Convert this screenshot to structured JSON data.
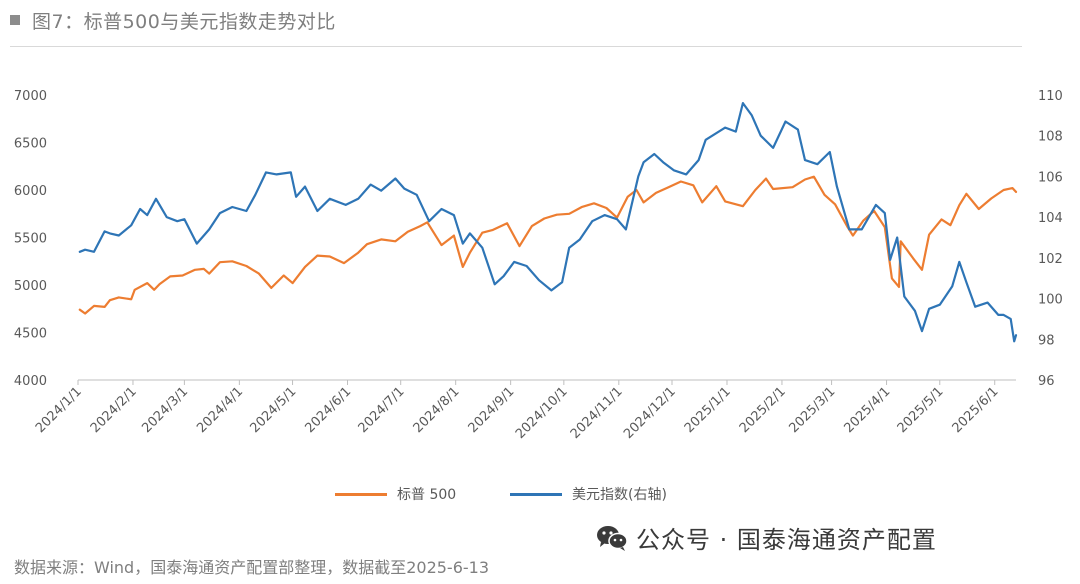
{
  "header": {
    "title": "图7：标普500与美元指数走势对比"
  },
  "footer": {
    "source": "数据来源：Wind，国泰海通资产配置部整理，数据截至2025-6-13",
    "watermark": "公众号 · 国泰海通资产配置"
  },
  "legend": {
    "spx_label": "标普 500",
    "dxy_label": "美元指数(右轴)"
  },
  "colors": {
    "spx": "#ed7d31",
    "dxy": "#2e75b6",
    "axis": "#bfbfbf",
    "text": "#595959"
  },
  "chart_data": {
    "type": "line",
    "title": "图7：标普500与美元指数走势对比",
    "x_tick_labels": [
      "2024/1/1",
      "2024/2/1",
      "2024/3/1",
      "2024/4/1",
      "2024/5/1",
      "2024/6/1",
      "2024/7/1",
      "2024/8/1",
      "2024/9/1",
      "2024/10/1",
      "2024/11/1",
      "2024/12/1",
      "2025/1/1",
      "2025/2/1",
      "2025/3/1",
      "2025/4/1",
      "2025/5/1",
      "2025/6/1"
    ],
    "x_range": [
      "2024-01-01",
      "2025-06-13"
    ],
    "y_left": {
      "min": 4000,
      "max": 7000,
      "ticks": [
        4000,
        4500,
        5000,
        5500,
        6000,
        6500,
        7000
      ]
    },
    "y_right": {
      "min": 96,
      "max": 110,
      "ticks": [
        96,
        98,
        100,
        102,
        104,
        106,
        108,
        110
      ]
    },
    "grid": false,
    "legend_position": "bottom",
    "series": [
      {
        "name": "标普 500",
        "axis": "left",
        "points": [
          [
            "2024-01-02",
            4740
          ],
          [
            "2024-01-05",
            4700
          ],
          [
            "2024-01-10",
            4780
          ],
          [
            "2024-01-16",
            4770
          ],
          [
            "2024-01-19",
            4840
          ],
          [
            "2024-01-24",
            4870
          ],
          [
            "2024-01-31",
            4850
          ],
          [
            "2024-02-02",
            4950
          ],
          [
            "2024-02-09",
            5020
          ],
          [
            "2024-02-13",
            4950
          ],
          [
            "2024-02-16",
            5010
          ],
          [
            "2024-02-22",
            5090
          ],
          [
            "2024-02-29",
            5100
          ],
          [
            "2024-03-07",
            5160
          ],
          [
            "2024-03-12",
            5170
          ],
          [
            "2024-03-15",
            5120
          ],
          [
            "2024-03-21",
            5240
          ],
          [
            "2024-03-28",
            5250
          ],
          [
            "2024-04-05",
            5200
          ],
          [
            "2024-04-12",
            5120
          ],
          [
            "2024-04-19",
            4970
          ],
          [
            "2024-04-26",
            5100
          ],
          [
            "2024-05-01",
            5020
          ],
          [
            "2024-05-08",
            5190
          ],
          [
            "2024-05-15",
            5310
          ],
          [
            "2024-05-22",
            5300
          ],
          [
            "2024-05-30",
            5230
          ],
          [
            "2024-06-07",
            5340
          ],
          [
            "2024-06-12",
            5430
          ],
          [
            "2024-06-20",
            5480
          ],
          [
            "2024-06-28",
            5460
          ],
          [
            "2024-07-05",
            5560
          ],
          [
            "2024-07-12",
            5620
          ],
          [
            "2024-07-16",
            5660
          ],
          [
            "2024-07-24",
            5420
          ],
          [
            "2024-07-31",
            5520
          ],
          [
            "2024-08-05",
            5190
          ],
          [
            "2024-08-09",
            5340
          ],
          [
            "2024-08-16",
            5550
          ],
          [
            "2024-08-22",
            5580
          ],
          [
            "2024-08-30",
            5650
          ],
          [
            "2024-09-06",
            5410
          ],
          [
            "2024-09-13",
            5620
          ],
          [
            "2024-09-20",
            5700
          ],
          [
            "2024-09-27",
            5740
          ],
          [
            "2024-10-04",
            5750
          ],
          [
            "2024-10-11",
            5820
          ],
          [
            "2024-10-18",
            5860
          ],
          [
            "2024-10-25",
            5810
          ],
          [
            "2024-10-31",
            5710
          ],
          [
            "2024-11-06",
            5930
          ],
          [
            "2024-11-11",
            6000
          ],
          [
            "2024-11-15",
            5870
          ],
          [
            "2024-11-22",
            5970
          ],
          [
            "2024-11-29",
            6030
          ],
          [
            "2024-12-06",
            6090
          ],
          [
            "2024-12-13",
            6050
          ],
          [
            "2024-12-18",
            5870
          ],
          [
            "2024-12-26",
            6040
          ],
          [
            "2024-12-31",
            5880
          ],
          [
            "2025-01-10",
            5830
          ],
          [
            "2025-01-17",
            6000
          ],
          [
            "2025-01-23",
            6120
          ],
          [
            "2025-01-27",
            6010
          ],
          [
            "2025-02-07",
            6030
          ],
          [
            "2025-02-14",
            6110
          ],
          [
            "2025-02-19",
            6140
          ],
          [
            "2025-02-25",
            5950
          ],
          [
            "2025-03-03",
            5850
          ],
          [
            "2025-03-10",
            5610
          ],
          [
            "2025-03-13",
            5520
          ],
          [
            "2025-03-19",
            5680
          ],
          [
            "2025-03-25",
            5780
          ],
          [
            "2025-03-31",
            5610
          ],
          [
            "2025-04-04",
            5070
          ],
          [
            "2025-04-08",
            4980
          ],
          [
            "2025-04-09",
            5460
          ],
          [
            "2025-04-16",
            5280
          ],
          [
            "2025-04-21",
            5160
          ],
          [
            "2025-04-25",
            5530
          ],
          [
            "2025-05-02",
            5690
          ],
          [
            "2025-05-07",
            5630
          ],
          [
            "2025-05-12",
            5840
          ],
          [
            "2025-05-16",
            5960
          ],
          [
            "2025-05-23",
            5800
          ],
          [
            "2025-05-30",
            5910
          ],
          [
            "2025-06-06",
            6000
          ],
          [
            "2025-06-11",
            6020
          ],
          [
            "2025-06-13",
            5980
          ]
        ]
      },
      {
        "name": "美元指数(右轴)",
        "axis": "right",
        "points": [
          [
            "2024-01-02",
            102.3
          ],
          [
            "2024-01-05",
            102.4
          ],
          [
            "2024-01-10",
            102.3
          ],
          [
            "2024-01-16",
            103.3
          ],
          [
            "2024-01-19",
            103.2
          ],
          [
            "2024-01-24",
            103.1
          ],
          [
            "2024-01-31",
            103.6
          ],
          [
            "2024-02-05",
            104.4
          ],
          [
            "2024-02-09",
            104.1
          ],
          [
            "2024-02-14",
            104.9
          ],
          [
            "2024-02-20",
            104.0
          ],
          [
            "2024-02-26",
            103.8
          ],
          [
            "2024-03-01",
            103.9
          ],
          [
            "2024-03-08",
            102.7
          ],
          [
            "2024-03-15",
            103.4
          ],
          [
            "2024-03-21",
            104.2
          ],
          [
            "2024-03-28",
            104.5
          ],
          [
            "2024-04-05",
            104.3
          ],
          [
            "2024-04-10",
            105.1
          ],
          [
            "2024-04-16",
            106.2
          ],
          [
            "2024-04-22",
            106.1
          ],
          [
            "2024-04-30",
            106.2
          ],
          [
            "2024-05-03",
            105.0
          ],
          [
            "2024-05-08",
            105.5
          ],
          [
            "2024-05-15",
            104.3
          ],
          [
            "2024-05-22",
            104.9
          ],
          [
            "2024-05-31",
            104.6
          ],
          [
            "2024-06-07",
            104.9
          ],
          [
            "2024-06-14",
            105.6
          ],
          [
            "2024-06-20",
            105.3
          ],
          [
            "2024-06-28",
            105.9
          ],
          [
            "2024-07-03",
            105.4
          ],
          [
            "2024-07-10",
            105.1
          ],
          [
            "2024-07-17",
            103.8
          ],
          [
            "2024-07-24",
            104.4
          ],
          [
            "2024-07-31",
            104.1
          ],
          [
            "2024-08-05",
            102.7
          ],
          [
            "2024-08-09",
            103.2
          ],
          [
            "2024-08-16",
            102.5
          ],
          [
            "2024-08-23",
            100.7
          ],
          [
            "2024-08-28",
            101.1
          ],
          [
            "2024-09-03",
            101.8
          ],
          [
            "2024-09-10",
            101.6
          ],
          [
            "2024-09-17",
            100.9
          ],
          [
            "2024-09-24",
            100.4
          ],
          [
            "2024-09-30",
            100.8
          ],
          [
            "2024-10-04",
            102.5
          ],
          [
            "2024-10-10",
            102.9
          ],
          [
            "2024-10-17",
            103.8
          ],
          [
            "2024-10-24",
            104.1
          ],
          [
            "2024-10-31",
            103.9
          ],
          [
            "2024-11-05",
            103.4
          ],
          [
            "2024-11-12",
            106.0
          ],
          [
            "2024-11-15",
            106.7
          ],
          [
            "2024-11-21",
            107.1
          ],
          [
            "2024-11-26",
            106.7
          ],
          [
            "2024-12-02",
            106.3
          ],
          [
            "2024-12-09",
            106.1
          ],
          [
            "2024-12-16",
            106.8
          ],
          [
            "2024-12-20",
            107.8
          ],
          [
            "2024-12-31",
            108.4
          ],
          [
            "2025-01-06",
            108.2
          ],
          [
            "2025-01-10",
            109.6
          ],
          [
            "2025-01-15",
            109.0
          ],
          [
            "2025-01-20",
            108.0
          ],
          [
            "2025-01-27",
            107.4
          ],
          [
            "2025-02-03",
            108.7
          ],
          [
            "2025-02-10",
            108.3
          ],
          [
            "2025-02-14",
            106.8
          ],
          [
            "2025-02-21",
            106.6
          ],
          [
            "2025-02-28",
            107.2
          ],
          [
            "2025-03-04",
            105.5
          ],
          [
            "2025-03-11",
            103.4
          ],
          [
            "2025-03-18",
            103.4
          ],
          [
            "2025-03-26",
            104.6
          ],
          [
            "2025-03-31",
            104.2
          ],
          [
            "2025-04-03",
            101.9
          ],
          [
            "2025-04-07",
            103.0
          ],
          [
            "2025-04-11",
            100.1
          ],
          [
            "2025-04-17",
            99.4
          ],
          [
            "2025-04-21",
            98.4
          ],
          [
            "2025-04-25",
            99.5
          ],
          [
            "2025-05-01",
            99.7
          ],
          [
            "2025-05-08",
            100.6
          ],
          [
            "2025-05-12",
            101.8
          ],
          [
            "2025-05-16",
            100.8
          ],
          [
            "2025-05-21",
            99.6
          ],
          [
            "2025-05-28",
            99.8
          ],
          [
            "2025-06-03",
            99.2
          ],
          [
            "2025-06-06",
            99.2
          ],
          [
            "2025-06-10",
            99.0
          ],
          [
            "2025-06-12",
            97.9
          ],
          [
            "2025-06-13",
            98.2
          ]
        ]
      }
    ]
  }
}
